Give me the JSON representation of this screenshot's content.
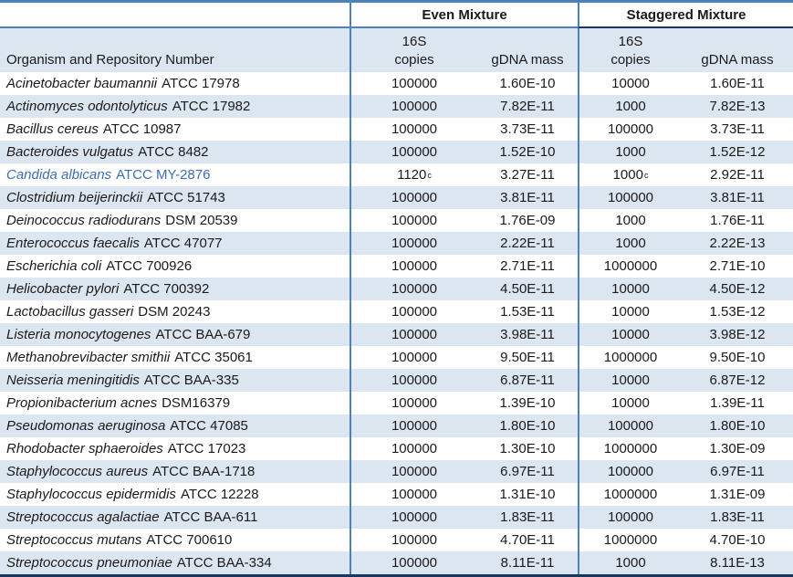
{
  "table": {
    "colors": {
      "accent_border": "#4e80bc",
      "dark_border": "#17375e",
      "band_fill": "#dce6f1",
      "highlight_text": "#3f6db5"
    },
    "groups": {
      "even_label": "Even Mixture",
      "staggered_label": "Staggered Mixture"
    },
    "header": {
      "organism_label": "Organism and Repository Number",
      "copies_line1": "16S",
      "copies_line2": "copies",
      "gdna_label": "gDNA mass"
    },
    "rows": [
      {
        "organism": "Acinetobacter baumannii",
        "repo": "ATCC 17978",
        "even_copies": "100000",
        "even_copies_sup": "",
        "even_gdna": "1.60E-10",
        "stag_copies": "10000",
        "stag_copies_sup": "",
        "stag_gdna": "1.60E-11",
        "highlight": false
      },
      {
        "organism": "Actinomyces odontolyticus",
        "repo": "ATCC 17982",
        "even_copies": "100000",
        "even_copies_sup": "",
        "even_gdna": "7.82E-11",
        "stag_copies": "1000",
        "stag_copies_sup": "",
        "stag_gdna": "7.82E-13",
        "highlight": false
      },
      {
        "organism": "Bacillus cereus",
        "repo": "ATCC 10987",
        "even_copies": "100000",
        "even_copies_sup": "",
        "even_gdna": "3.73E-11",
        "stag_copies": "100000",
        "stag_copies_sup": "",
        "stag_gdna": "3.73E-11",
        "highlight": false
      },
      {
        "organism": "Bacteroides vulgatus",
        "repo": "ATCC 8482",
        "even_copies": "100000",
        "even_copies_sup": "",
        "even_gdna": "1.52E-10",
        "stag_copies": "1000",
        "stag_copies_sup": "",
        "stag_gdna": "1.52E-12",
        "highlight": false
      },
      {
        "organism": "Candida albicans",
        "repo": "ATCC MY-2876",
        "even_copies": "1120",
        "even_copies_sup": "c",
        "even_gdna": "3.27E-11",
        "stag_copies": "1000",
        "stag_copies_sup": "c",
        "stag_gdna": "2.92E-11",
        "highlight": true
      },
      {
        "organism": "Clostridium beijerinckii",
        "repo": "ATCC 51743",
        "even_copies": "100000",
        "even_copies_sup": "",
        "even_gdna": "3.81E-11",
        "stag_copies": "100000",
        "stag_copies_sup": "",
        "stag_gdna": "3.81E-11",
        "highlight": false
      },
      {
        "organism": "Deinococcus radiodurans",
        "repo": "DSM 20539",
        "even_copies": "100000",
        "even_copies_sup": "",
        "even_gdna": "1.76E-09",
        "stag_copies": "1000",
        "stag_copies_sup": "",
        "stag_gdna": "1.76E-11",
        "highlight": false
      },
      {
        "organism": "Enterococcus faecalis",
        "repo": "ATCC 47077",
        "even_copies": "100000",
        "even_copies_sup": "",
        "even_gdna": "2.22E-11",
        "stag_copies": "1000",
        "stag_copies_sup": "",
        "stag_gdna": "2.22E-13",
        "highlight": false
      },
      {
        "organism": "Escherichia coli",
        "repo": "ATCC 700926",
        "even_copies": "100000",
        "even_copies_sup": "",
        "even_gdna": "2.71E-11",
        "stag_copies": "1000000",
        "stag_copies_sup": "",
        "stag_gdna": "2.71E-10",
        "highlight": false
      },
      {
        "organism": "Helicobacter pylori",
        "repo": "ATCC 700392",
        "even_copies": "100000",
        "even_copies_sup": "",
        "even_gdna": "4.50E-11",
        "stag_copies": "10000",
        "stag_copies_sup": "",
        "stag_gdna": "4.50E-12",
        "highlight": false
      },
      {
        "organism": "Lactobacillus gasseri",
        "repo": "DSM 20243",
        "even_copies": "100000",
        "even_copies_sup": "",
        "even_gdna": "1.53E-11",
        "stag_copies": "10000",
        "stag_copies_sup": "",
        "stag_gdna": "1.53E-12",
        "highlight": false
      },
      {
        "organism": "Listeria monocytogenes",
        "repo": "ATCC BAA-679",
        "even_copies": "100000",
        "even_copies_sup": "",
        "even_gdna": "3.98E-11",
        "stag_copies": "10000",
        "stag_copies_sup": "",
        "stag_gdna": "3.98E-12",
        "highlight": false
      },
      {
        "organism": "Methanobrevibacter smithii",
        "repo": "ATCC 35061",
        "even_copies": "100000",
        "even_copies_sup": "",
        "even_gdna": "9.50E-11",
        "stag_copies": "1000000",
        "stag_copies_sup": "",
        "stag_gdna": "9.50E-10",
        "highlight": false
      },
      {
        "organism": "Neisseria meningitidis",
        "repo": "ATCC BAA-335",
        "even_copies": "100000",
        "even_copies_sup": "",
        "even_gdna": "6.87E-11",
        "stag_copies": "10000",
        "stag_copies_sup": "",
        "stag_gdna": "6.87E-12",
        "highlight": false
      },
      {
        "organism": "Propionibacterium acnes",
        "repo": "DSM16379",
        "even_copies": "100000",
        "even_copies_sup": "",
        "even_gdna": "1.39E-10",
        "stag_copies": "10000",
        "stag_copies_sup": "",
        "stag_gdna": "1.39E-11",
        "highlight": false
      },
      {
        "organism": "Pseudomonas aeruginosa",
        "repo": "ATCC 47085",
        "even_copies": "100000",
        "even_copies_sup": "",
        "even_gdna": "1.80E-10",
        "stag_copies": "100000",
        "stag_copies_sup": "",
        "stag_gdna": "1.80E-10",
        "highlight": false
      },
      {
        "organism": "Rhodobacter sphaeroides",
        "repo": "ATCC 17023",
        "even_copies": "100000",
        "even_copies_sup": "",
        "even_gdna": "1.30E-10",
        "stag_copies": "1000000",
        "stag_copies_sup": "",
        "stag_gdna": "1.30E-09",
        "highlight": false
      },
      {
        "organism": "Staphylococcus aureus",
        "repo": "ATCC BAA-1718",
        "even_copies": "100000",
        "even_copies_sup": "",
        "even_gdna": "6.97E-11",
        "stag_copies": "100000",
        "stag_copies_sup": "",
        "stag_gdna": "6.97E-11",
        "highlight": false
      },
      {
        "organism": "Staphylococcus epidermidis",
        "repo": "ATCC 12228",
        "even_copies": "100000",
        "even_copies_sup": "",
        "even_gdna": "1.31E-10",
        "stag_copies": "1000000",
        "stag_copies_sup": "",
        "stag_gdna": "1.31E-09",
        "highlight": false
      },
      {
        "organism": "Streptococcus agalactiae",
        "repo": "ATCC BAA-611",
        "even_copies": "100000",
        "even_copies_sup": "",
        "even_gdna": "1.83E-11",
        "stag_copies": "100000",
        "stag_copies_sup": "",
        "stag_gdna": "1.83E-11",
        "highlight": false
      },
      {
        "organism": "Streptococcus mutans",
        "repo": "ATCC 700610",
        "even_copies": "100000",
        "even_copies_sup": "",
        "even_gdna": "4.70E-11",
        "stag_copies": "1000000",
        "stag_copies_sup": "",
        "stag_gdna": "4.70E-10",
        "highlight": false
      },
      {
        "organism": "Streptococcus pneumoniae",
        "repo": "ATCC BAA-334",
        "even_copies": "100000",
        "even_copies_sup": "",
        "even_gdna": "8.11E-11",
        "stag_copies": "1000",
        "stag_copies_sup": "",
        "stag_gdna": "8.11E-13",
        "highlight": false
      }
    ]
  }
}
